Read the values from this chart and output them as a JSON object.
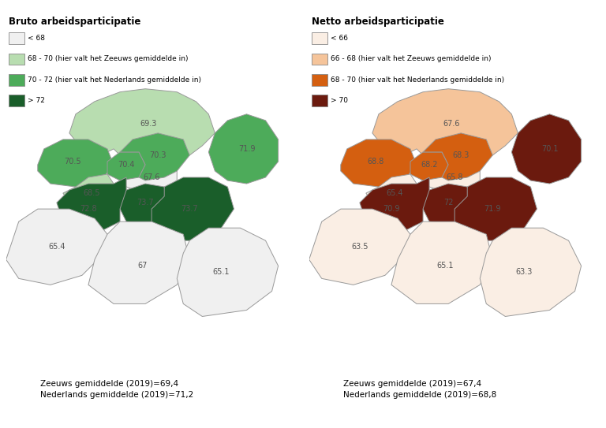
{
  "left_title": "Bruto arbeidsparticipatie",
  "right_title": "Netto arbeidsparticipatie",
  "left_legend": [
    {
      "label": "< 68",
      "color": "#f0f0f0"
    },
    {
      "label": "68 - 70 (hier valt het Zeeuws gemiddelde in)",
      "color": "#b8ddb0"
    },
    {
      "label": "70 - 72 (hier valt het Nederlands gemiddelde in)",
      "color": "#4dab5a"
    },
    {
      "label": "> 72",
      "color": "#1a5e2a"
    }
  ],
  "right_legend": [
    {
      "label": "< 66",
      "color": "#faeee4"
    },
    {
      "label": "66 - 68 (hier valt het Zeeuws gemiddelde in)",
      "color": "#f5c49a"
    },
    {
      "label": "68 - 70 (hier valt het Nederlands gemiddelde in)",
      "color": "#d45f10"
    },
    {
      "label": "> 70",
      "color": "#6b1a0e"
    }
  ],
  "left_footer": "Zeeuws gemiddelde (2019)=69,4\nNederlands gemiddelde (2019)=71,2",
  "right_footer": "Zeeuws gemiddelde (2019)=67,4\nNederlands gemiddelde (2019)=68,8",
  "bruto_values": {
    "Schouwen-Duiveland": "69.3",
    "Noord-Beveland": "67.6",
    "Tholen": "71.9",
    "Goes": "70.5",
    "Middelburg": "70.4",
    "Veere": "70.3",
    "Vlissingen": "68.5",
    "Kapelle": "73.7",
    "Reimerswaal": "73.7",
    "Borsele": "72.8",
    "Terneuzen": "65.4",
    "Hulst": "67",
    "Sluis": "65.1"
  },
  "netto_values": {
    "Schouwen-Duiveland": "67.6",
    "Noord-Beveland": "65.8",
    "Tholen": "70.1",
    "Goes": "68.8",
    "Middelburg": "68.2",
    "Veere": "68.3",
    "Vlissingen": "65.4",
    "Kapelle": "72",
    "Reimerswaal": "71.9",
    "Borsele": "70.9",
    "Terneuzen": "63.5",
    "Hulst": "65.1",
    "Sluis": "63.3"
  },
  "bruto_cats": {
    "Schouwen-Duiveland": 1,
    "Noord-Beveland": 0,
    "Tholen": 2,
    "Goes": 2,
    "Middelburg": 2,
    "Veere": 2,
    "Vlissingen": 1,
    "Kapelle": 3,
    "Reimerswaal": 3,
    "Borsele": 3,
    "Terneuzen": 0,
    "Hulst": 0,
    "Sluis": 0
  },
  "netto_cats": {
    "Schouwen-Duiveland": 1,
    "Noord-Beveland": 0,
    "Tholen": 3,
    "Goes": 2,
    "Middelburg": 2,
    "Veere": 2,
    "Vlissingen": 0,
    "Kapelle": 3,
    "Reimerswaal": 3,
    "Borsele": 3,
    "Terneuzen": 0,
    "Hulst": 0,
    "Sluis": 0
  },
  "bruto_colors": [
    "#f0f0f0",
    "#b8ddb0",
    "#4dab5a",
    "#1a5e2a"
  ],
  "netto_colors": [
    "#faeee4",
    "#f5c49a",
    "#d45f10",
    "#6b1a0e"
  ],
  "edge_color": "#999999",
  "bg_color": "#ffffff",
  "text_color": "#555555"
}
